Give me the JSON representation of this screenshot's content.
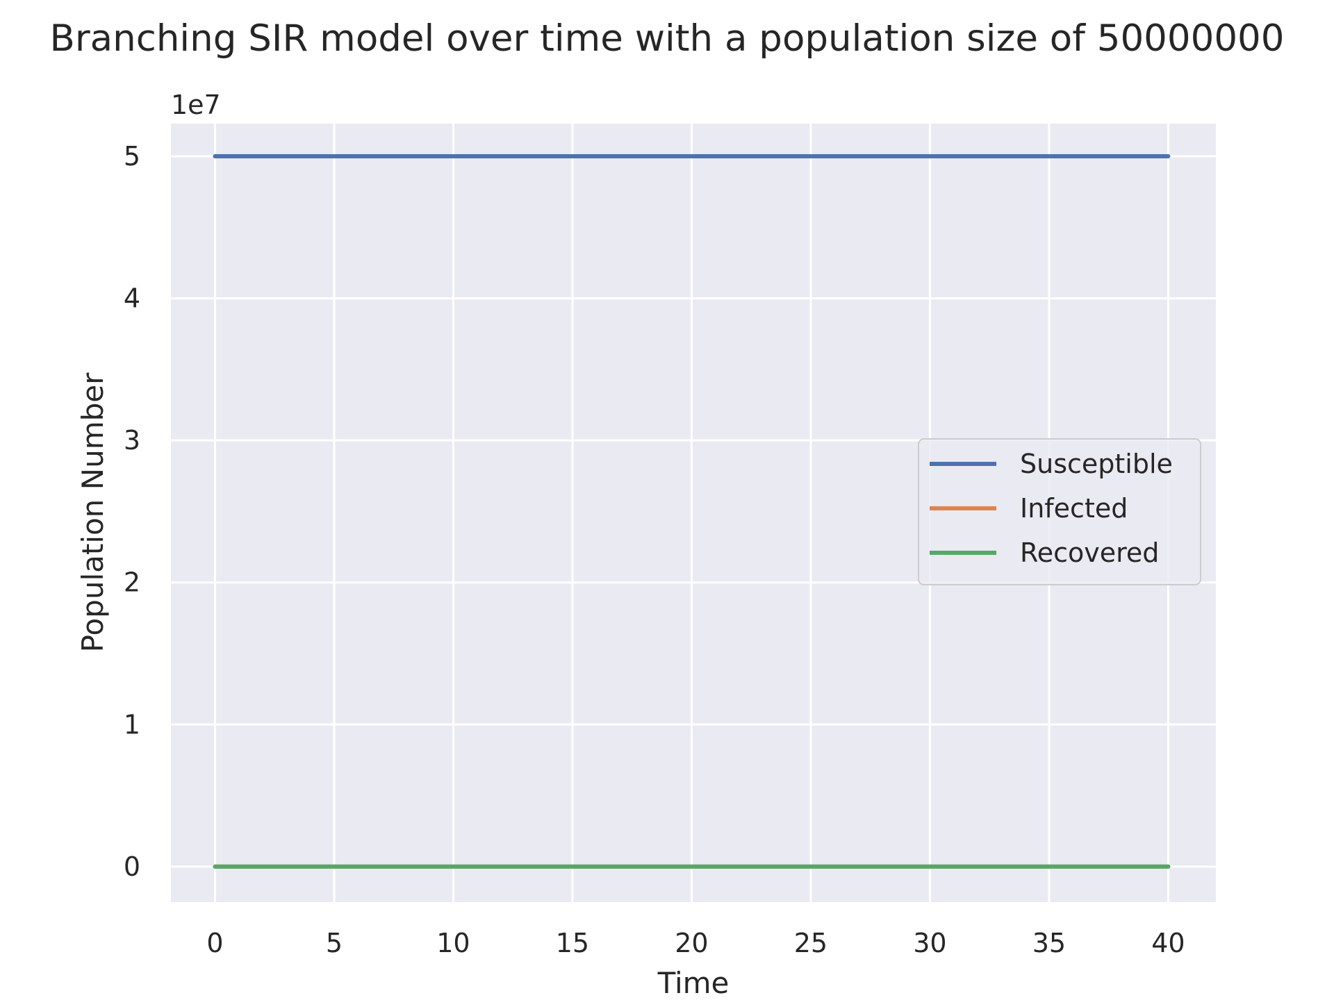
{
  "chart_data": {
    "type": "line",
    "title": "Branching SIR model over time with a population size of 50000000",
    "xlabel": "Time",
    "ylabel": "Population Number",
    "y_offset_label": "1e7",
    "xlim": [
      -1.85,
      42
    ],
    "ylim": [
      -0.25,
      5.23
    ],
    "y_scale_note": "values in units of 1e7",
    "x_ticks": [
      0,
      5,
      10,
      15,
      20,
      25,
      30,
      35,
      40
    ],
    "x_tick_labels": [
      "0",
      "5",
      "10",
      "15",
      "20",
      "25",
      "30",
      "35",
      "40"
    ],
    "y_ticks": [
      0,
      1,
      2,
      3,
      4,
      5
    ],
    "y_tick_labels": [
      "0",
      "1",
      "2",
      "3",
      "4",
      "5"
    ],
    "grid": true,
    "legend_position": "center-right",
    "background": "#eaeaf2",
    "series": [
      {
        "name": "Susceptible",
        "color": "#4c72b0",
        "x": [
          0,
          40
        ],
        "y": [
          5,
          5
        ]
      },
      {
        "name": "Infected",
        "color": "#dd8452",
        "x": [
          0,
          40
        ],
        "y": [
          0,
          0
        ]
      },
      {
        "name": "Recovered",
        "color": "#55a868",
        "x": [
          0,
          40
        ],
        "y": [
          0,
          0
        ]
      }
    ]
  }
}
